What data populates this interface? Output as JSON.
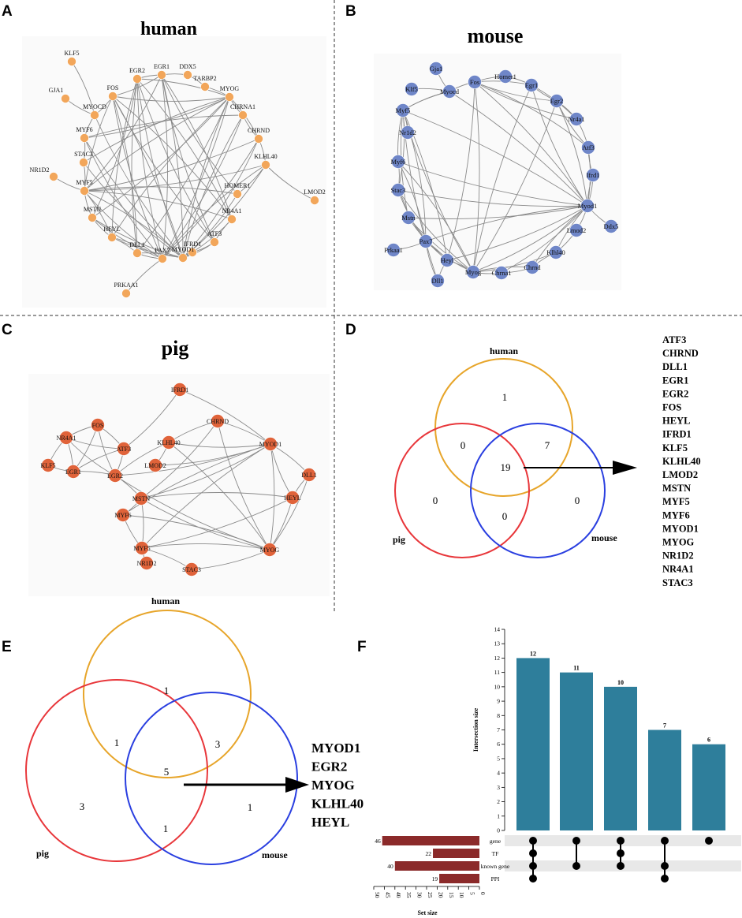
{
  "panels": {
    "A": {
      "label": "A",
      "title": "human"
    },
    "B": {
      "label": "B",
      "title": "mouse"
    },
    "C": {
      "label": "C",
      "title": "pig"
    },
    "D": {
      "label": "D"
    },
    "E": {
      "label": "E"
    },
    "F": {
      "label": "F"
    }
  },
  "colors": {
    "human_node": "#F2A65A",
    "mouse_node": "#6F86C8",
    "pig_node": "#E0633A",
    "edge": "#8a8a8a",
    "venn_human": "#E7A52A",
    "venn_pig": "#E8363A",
    "venn_mouse": "#2A3FE0",
    "bar": "#2E7E9B",
    "setbar": "#8B2A2A",
    "center_red": "#E02020"
  },
  "networks": {
    "human": {
      "nodes": [
        "KLF5",
        "EGR2",
        "EGR1",
        "DDX5",
        "TARBP2",
        "GJA1",
        "FOS",
        "MYOCD",
        "MYOG",
        "CHRNA1",
        "MYF6",
        "CHRND",
        "STAC3",
        "NR1D2",
        "KLHL40",
        "LMOD2",
        "MYF5",
        "HOMER1",
        "MSTN",
        "NR4A1",
        "HEYL",
        "ATF3",
        "DLL1",
        "IFRD1",
        "PAX7",
        "MYOD1",
        "PRKAA1"
      ]
    },
    "mouse": {
      "nodes": [
        "Gja1",
        "Fos",
        "Homer1",
        "Klf5",
        "Myocd",
        "Egr1",
        "Egr2",
        "Myf5",
        "Nr4a1",
        "Nr1d2",
        "Atf3",
        "Myf6",
        "Ifrd1",
        "Stac3",
        "Myod1",
        "Ddx5",
        "Mstn",
        "Lmod2",
        "Pax7",
        "Prkaa1",
        "Heyl",
        "Klhl40",
        "Chrnd",
        "Myog",
        "Chrna1",
        "Dll1"
      ]
    },
    "pig": {
      "nodes": [
        "IFRD1",
        "CHRND",
        "FOS",
        "NR4A1",
        "ATF3",
        "KLHL40",
        "MYOD1",
        "LMOD2",
        "KLF5",
        "EGR1",
        "EGR2",
        "DLL1",
        "HEYL",
        "MSTN",
        "MYF6",
        "MYF5",
        "MYOG",
        "NR1D2",
        "STAC3"
      ]
    }
  },
  "venn_D": {
    "sets": [
      "human",
      "pig",
      "mouse"
    ],
    "counts": {
      "human_only": "1",
      "human_pig": "0",
      "human_mouse": "7",
      "all": "19",
      "pig_only": "0",
      "pig_mouse": "0",
      "mouse_only": "0"
    },
    "genes": [
      "ATF3",
      "CHRND",
      "DLL1",
      "EGR1",
      "EGR2",
      "FOS",
      "HEYL",
      "IFRD1",
      "KLF5",
      "KLHL40",
      "LMOD2",
      "MSTN",
      "MYF5",
      "MYF6",
      "MYOD1",
      "MYOG",
      "NR1D2",
      "NR4A1",
      "STAC3"
    ]
  },
  "venn_E": {
    "sets": [
      "human",
      "pig",
      "mouse"
    ],
    "counts": {
      "human_only": "1",
      "human_pig": "1",
      "human_mouse": "3",
      "all": "5",
      "pig_only": "3",
      "pig_mouse": "1",
      "mouse_only": "1"
    },
    "genes": [
      "MYOD1",
      "EGR2",
      "MYOG",
      "KLHL40",
      "HEYL"
    ]
  },
  "chart_data": {
    "type": "bar",
    "title": "",
    "ylabel": "Intersection size",
    "xlabel": "Set size",
    "ylim": [
      0,
      14
    ],
    "yticks": [
      0,
      1,
      2,
      3,
      4,
      5,
      6,
      7,
      8,
      9,
      10,
      11,
      12,
      13,
      14
    ],
    "categories": [
      "gene+TF+known gene+PPI",
      "gene+known gene",
      "gene+TF+known gene",
      "gene+known gene+PPI",
      "gene"
    ],
    "values": [
      12,
      11,
      10,
      7,
      6
    ],
    "sets": {
      "names": [
        "gene",
        "TF",
        "known gene",
        "PPI"
      ],
      "sizes": [
        46,
        22,
        40,
        19
      ],
      "xlim": [
        50,
        0
      ],
      "xticks": [
        50,
        45,
        40,
        35,
        30,
        25,
        20,
        15,
        10,
        5,
        0
      ]
    },
    "membership": [
      [
        0,
        1,
        2,
        3
      ],
      [
        0,
        2
      ],
      [
        0,
        1,
        2
      ],
      [
        0,
        2,
        3
      ],
      [
        0
      ]
    ]
  }
}
